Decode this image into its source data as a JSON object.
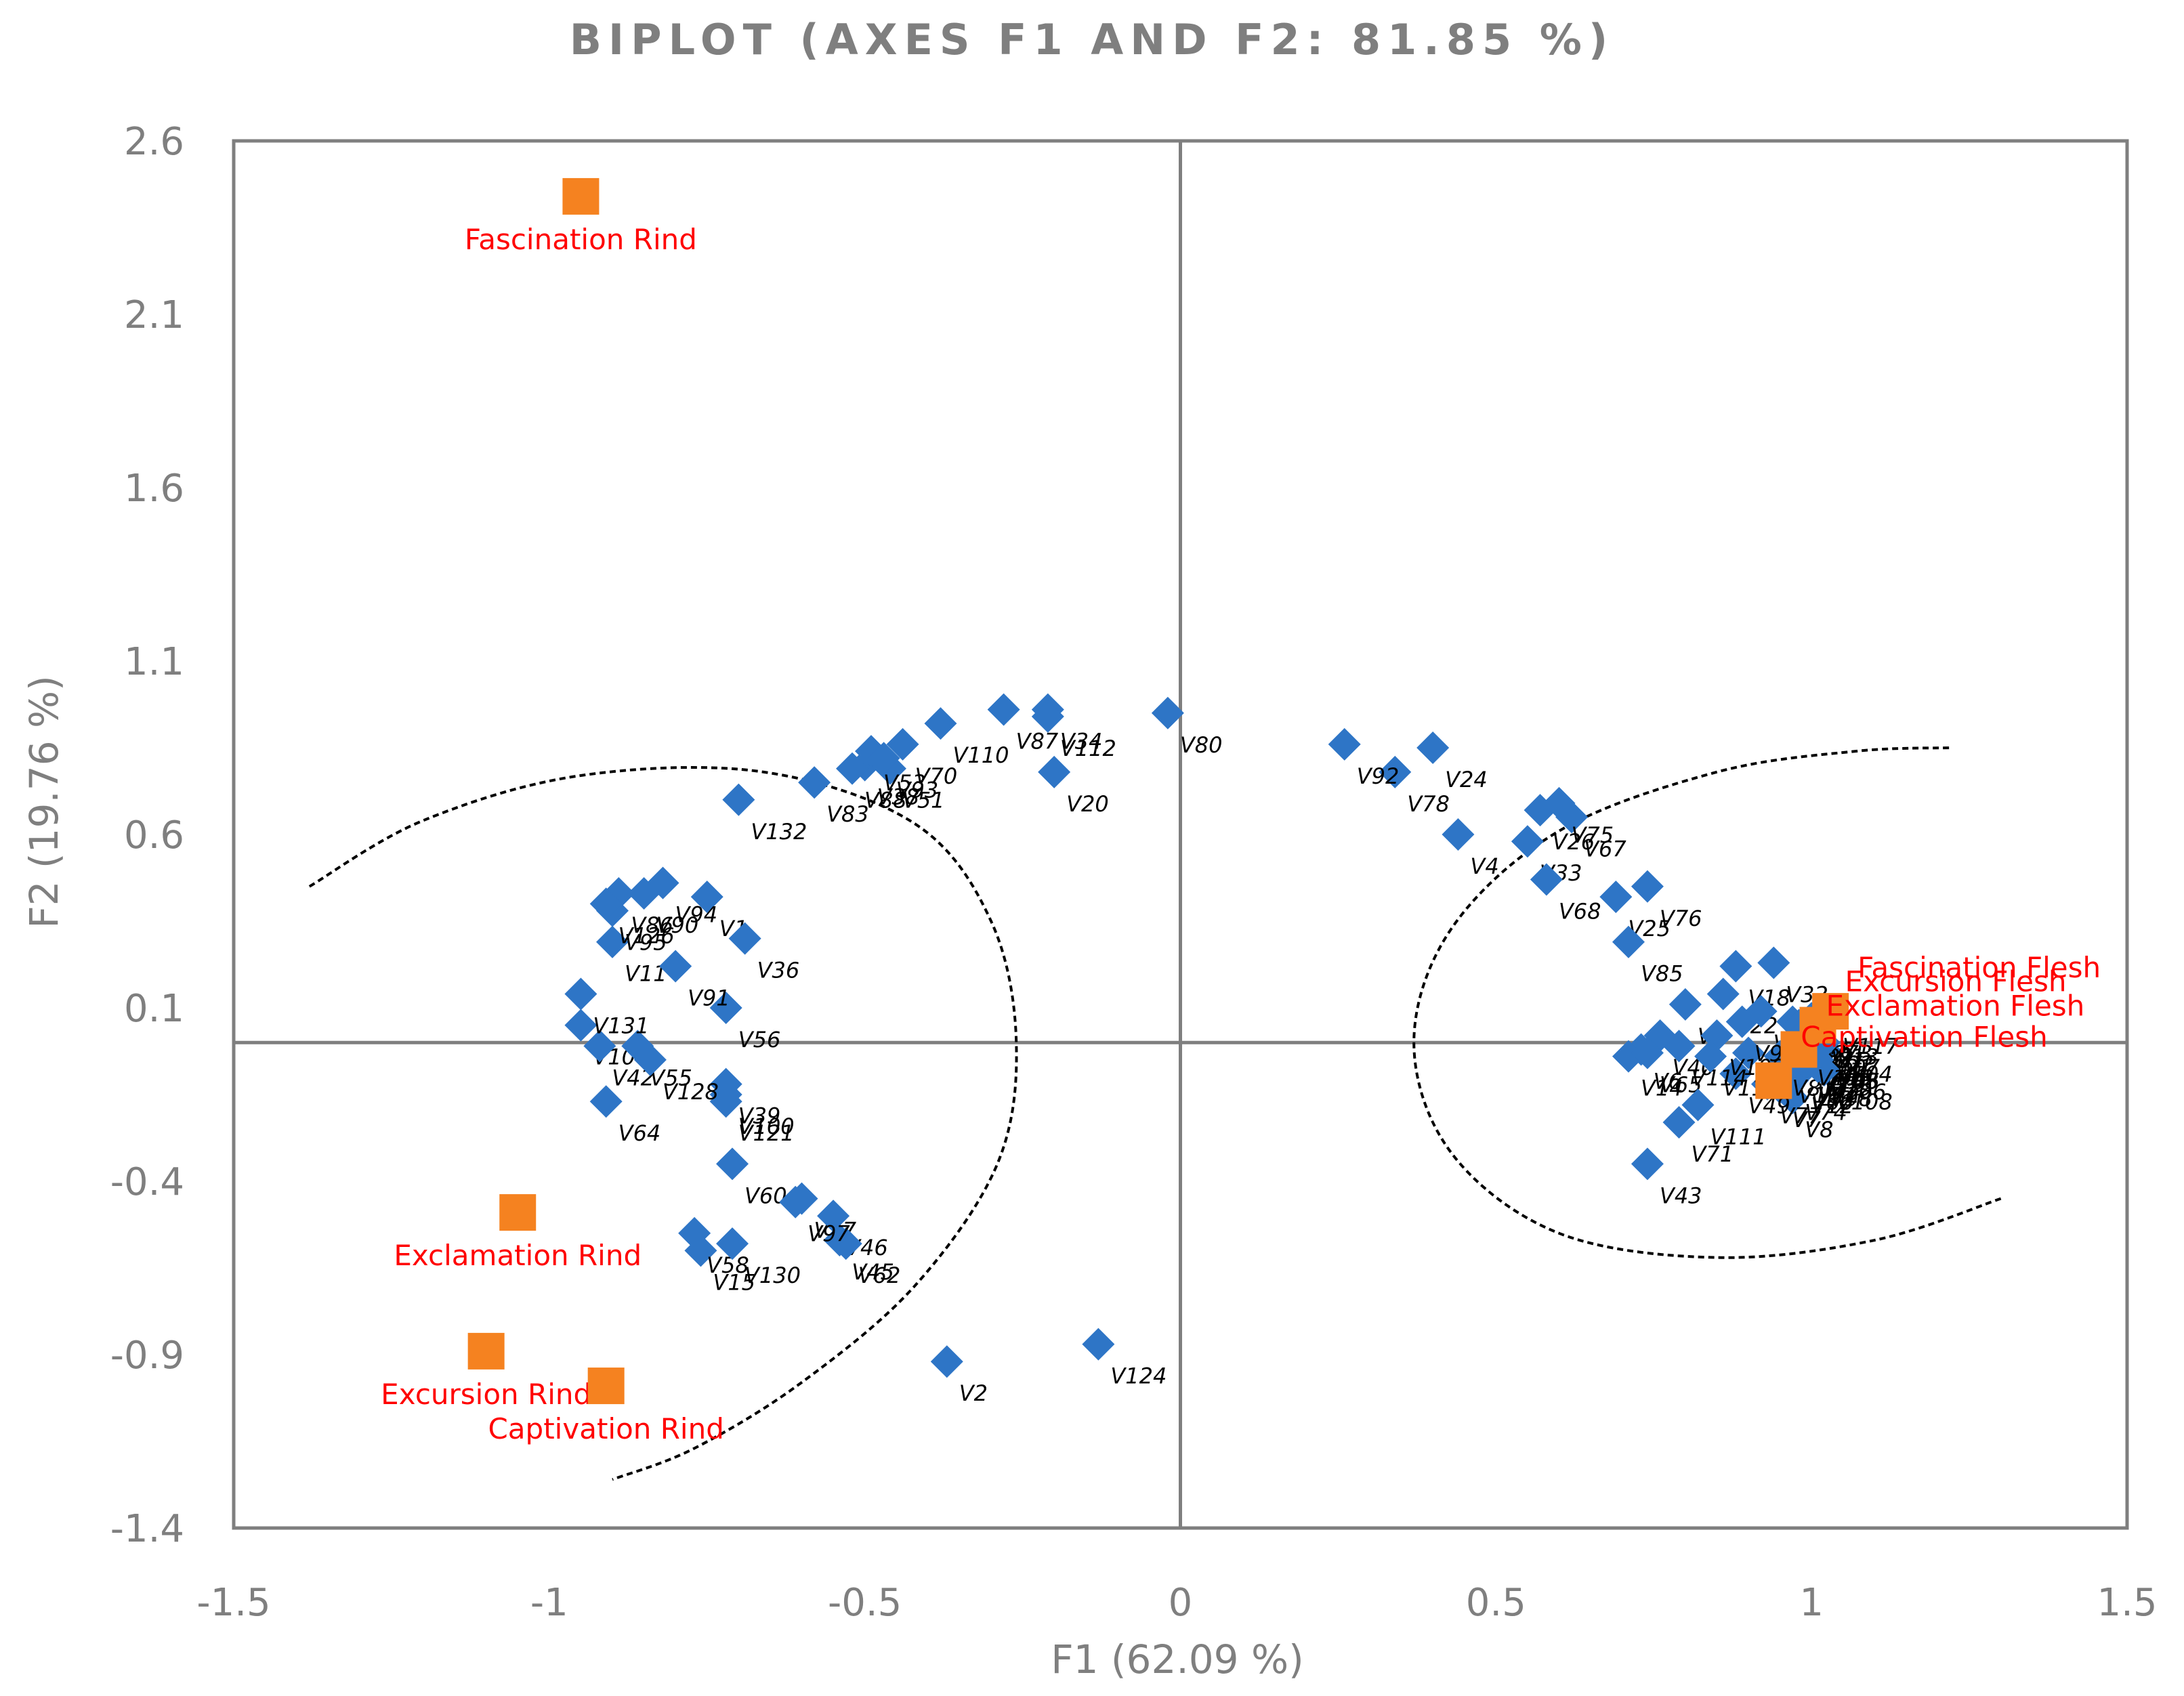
{
  "chart_data": {
    "type": "scatter",
    "title": "BIPLOT (AXES F1 AND F2: 81.85 %)",
    "xlabel": "F1 (62.09 %)",
    "ylabel": "F2 (19.76 %)",
    "xlim": [
      -1.5,
      1.5
    ],
    "ylim": [
      -1.4,
      2.6
    ],
    "x_ticks": [
      "-1.5",
      "-1",
      "-0.5",
      "0",
      "0.5",
      "1",
      "1.5"
    ],
    "y_ticks": [
      "2.6",
      "2.1",
      "1.6",
      "1.1",
      "0.6",
      "0.1",
      "-0.4",
      "-0.9",
      "-1.4"
    ],
    "colors": {
      "variables": "#2e75c6",
      "observations": "#f58220",
      "observation_labels": "#ff0000",
      "frame": "#7f7f7f"
    },
    "series": [
      {
        "name": "Variables",
        "marker": "diamond",
        "points": [
          {
            "label": "V1",
            "x": -0.75,
            "y": 0.42
          },
          {
            "label": "V2",
            "x": -0.37,
            "y": -0.92
          },
          {
            "label": "V4",
            "x": 0.44,
            "y": 0.6
          },
          {
            "label": "V6",
            "x": 0.73,
            "y": -0.02
          },
          {
            "label": "V7",
            "x": 0.95,
            "y": -0.13
          },
          {
            "label": "V8",
            "x": 0.97,
            "y": -0.16
          },
          {
            "label": "V9",
            "x": 0.8,
            "y": 0.11
          },
          {
            "label": "V10",
            "x": -0.95,
            "y": 0.05
          },
          {
            "label": "V11",
            "x": -0.9,
            "y": 0.29
          },
          {
            "label": "V12",
            "x": 0.98,
            "y": -0.09
          },
          {
            "label": "V13",
            "x": 1.02,
            "y": 0.05
          },
          {
            "label": "V14",
            "x": 0.71,
            "y": -0.04
          },
          {
            "label": "V15",
            "x": -0.76,
            "y": -0.6
          },
          {
            "label": "V16",
            "x": 0.96,
            "y": -0.06
          },
          {
            "label": "V17",
            "x": -0.6,
            "y": -0.45
          },
          {
            "label": "V18",
            "x": 0.88,
            "y": 0.22
          },
          {
            "label": "V19",
            "x": 1.0,
            "y": -0.03
          },
          {
            "label": "V20",
            "x": -0.2,
            "y": 0.78
          },
          {
            "label": "V21",
            "x": 1.01,
            "y": 0.02
          },
          {
            "label": "V22",
            "x": 0.86,
            "y": 0.14
          },
          {
            "label": "V24",
            "x": 0.4,
            "y": 0.85
          },
          {
            "label": "V25",
            "x": 0.69,
            "y": 0.42
          },
          {
            "label": "V26",
            "x": 0.57,
            "y": 0.67
          },
          {
            "label": "V30",
            "x": 0.98,
            "y": 0.01
          },
          {
            "label": "V31",
            "x": 1.0,
            "y": 0.04
          },
          {
            "label": "V32",
            "x": 0.94,
            "y": 0.23
          },
          {
            "label": "V33",
            "x": 0.55,
            "y": 0.58
          },
          {
            "label": "V34",
            "x": -0.21,
            "y": 0.96
          },
          {
            "label": "V35",
            "x": 0.9,
            "y": -0.03
          },
          {
            "label": "V36",
            "x": -0.69,
            "y": 0.3
          },
          {
            "label": "V37",
            "x": 0.92,
            "y": 0.09
          },
          {
            "label": "V38",
            "x": -0.5,
            "y": 0.8
          },
          {
            "label": "V39",
            "x": -0.72,
            "y": -0.12
          },
          {
            "label": "V40",
            "x": 0.76,
            "y": 0.02
          },
          {
            "label": "V42",
            "x": -0.92,
            "y": -0.01
          },
          {
            "label": "V43",
            "x": 0.74,
            "y": -0.35
          },
          {
            "label": "V45",
            "x": -0.54,
            "y": -0.57
          },
          {
            "label": "V46",
            "x": -0.55,
            "y": -0.5
          },
          {
            "label": "V47",
            "x": 0.99,
            "y": -0.05
          },
          {
            "label": "V48",
            "x": 1.02,
            "y": -0.02
          },
          {
            "label": "V49",
            "x": 0.88,
            "y": -0.09
          },
          {
            "label": "V51",
            "x": -0.46,
            "y": 0.79
          },
          {
            "label": "V52",
            "x": 0.97,
            "y": 0.06
          },
          {
            "label": "V53",
            "x": -0.49,
            "y": 0.84
          },
          {
            "label": "V54",
            "x": 0.99,
            "y": 0.0
          },
          {
            "label": "V55",
            "x": -0.86,
            "y": -0.01
          },
          {
            "label": "V56",
            "x": -0.72,
            "y": 0.1
          },
          {
            "label": "V58",
            "x": -0.77,
            "y": -0.55
          },
          {
            "label": "V60",
            "x": -0.71,
            "y": -0.35
          },
          {
            "label": "V61",
            "x": 1.0,
            "y": 0.07
          },
          {
            "label": "V62",
            "x": -0.53,
            "y": -0.58
          },
          {
            "label": "V64",
            "x": -0.91,
            "y": -0.17
          },
          {
            "label": "V65",
            "x": 0.74,
            "y": -0.03
          },
          {
            "label": "V66",
            "x": 0.98,
            "y": -0.08
          },
          {
            "label": "V67",
            "x": 0.62,
            "y": 0.65
          },
          {
            "label": "V68",
            "x": 0.58,
            "y": 0.47
          },
          {
            "label": "V70",
            "x": -0.44,
            "y": 0.86
          },
          {
            "label": "V71",
            "x": 0.79,
            "y": -0.23
          },
          {
            "label": "V73",
            "x": 1.01,
            "y": 0.06
          },
          {
            "label": "V74",
            "x": 0.97,
            "y": -0.11
          },
          {
            "label": "V75",
            "x": 0.6,
            "y": 0.69
          },
          {
            "label": "V76",
            "x": 0.74,
            "y": 0.45
          },
          {
            "label": "V77",
            "x": 0.93,
            "y": -0.12
          },
          {
            "label": "V78",
            "x": 0.34,
            "y": 0.78
          },
          {
            "label": "V79",
            "x": 1.01,
            "y": -0.04
          },
          {
            "label": "V80",
            "x": -0.02,
            "y": 0.95
          },
          {
            "label": "V81",
            "x": 0.95,
            "y": -0.04
          },
          {
            "label": "V82",
            "x": 0.99,
            "y": -0.06
          },
          {
            "label": "V83",
            "x": -0.58,
            "y": 0.75
          },
          {
            "label": "V85",
            "x": 0.71,
            "y": 0.29
          },
          {
            "label": "V86",
            "x": -0.89,
            "y": 0.43
          },
          {
            "label": "V87",
            "x": -0.28,
            "y": 0.96
          },
          {
            "label": "V88",
            "x": -0.52,
            "y": 0.79
          },
          {
            "label": "V89",
            "x": 0.98,
            "y": 0.05
          },
          {
            "label": "V90",
            "x": -0.85,
            "y": 0.43
          },
          {
            "label": "V91",
            "x": -0.8,
            "y": 0.22
          },
          {
            "label": "V92",
            "x": 0.26,
            "y": 0.86
          },
          {
            "label": "V93",
            "x": -0.47,
            "y": 0.82
          },
          {
            "label": "V94",
            "x": -0.82,
            "y": 0.46
          },
          {
            "label": "V95",
            "x": -0.9,
            "y": 0.38
          },
          {
            "label": "V96",
            "x": 1.0,
            "y": -0.01
          },
          {
            "label": "V97",
            "x": -0.61,
            "y": -0.46
          },
          {
            "label": "V98",
            "x": 1.01,
            "y": -0.07
          },
          {
            "label": "V99",
            "x": 0.89,
            "y": 0.06
          },
          {
            "label": "V100",
            "x": -0.72,
            "y": -0.15
          },
          {
            "label": "V102",
            "x": 0.99,
            "y": 0.03
          },
          {
            "label": "V104",
            "x": 1.02,
            "y": 0.0
          },
          {
            "label": "V105",
            "x": 1.0,
            "y": -0.02
          },
          {
            "label": "V106",
            "x": 1.01,
            "y": -0.05
          },
          {
            "label": "V107",
            "x": 1.0,
            "y": 0.02
          },
          {
            "label": "V108",
            "x": 1.02,
            "y": -0.08
          },
          {
            "label": "V109",
            "x": 0.85,
            "y": 0.02
          },
          {
            "label": "V110",
            "x": -0.38,
            "y": 0.92
          },
          {
            "label": "V111",
            "x": 0.82,
            "y": -0.18
          },
          {
            "label": "V112",
            "x": -0.21,
            "y": 0.94
          },
          {
            "label": "V114",
            "x": 0.79,
            "y": -0.01
          },
          {
            "label": "V115",
            "x": 0.84,
            "y": -0.04
          },
          {
            "label": "V117",
            "x": 1.03,
            "y": 0.08
          },
          {
            "label": "V118",
            "x": 0.99,
            "y": -0.01
          },
          {
            "label": "V121",
            "x": -0.72,
            "y": -0.17
          },
          {
            "label": "V124",
            "x": -0.13,
            "y": -0.87
          },
          {
            "label": "V126",
            "x": -0.91,
            "y": 0.4
          },
          {
            "label": "V128",
            "x": -0.84,
            "y": -0.05
          },
          {
            "label": "V130",
            "x": -0.71,
            "y": -0.58
          },
          {
            "label": "V131",
            "x": -0.95,
            "y": 0.14
          },
          {
            "label": "V132",
            "x": -0.7,
            "y": 0.7
          }
        ]
      },
      {
        "name": "Observations",
        "marker": "square",
        "points": [
          {
            "label": "Fascination Rind",
            "x": -0.95,
            "y": 2.44
          },
          {
            "label": "Exclamation Rind",
            "x": -1.05,
            "y": -0.49
          },
          {
            "label": "Excursion Rind",
            "x": -1.1,
            "y": -0.89
          },
          {
            "label": "Captivation Rind",
            "x": -0.91,
            "y": -0.99
          },
          {
            "label": "Excursion Flesh",
            "x": 1.01,
            "y": 0.05
          },
          {
            "label": "Fascination Flesh",
            "x": 1.03,
            "y": 0.09
          },
          {
            "label": "Exclamation Flesh",
            "x": 0.98,
            "y": -0.02
          },
          {
            "label": "Captivation Flesh",
            "x": 0.94,
            "y": -0.11
          }
        ]
      }
    ],
    "ellipses": [
      {
        "name": "Rind group",
        "path": [
          [
            -1.38,
            0.45
          ],
          [
            -1.2,
            0.64
          ],
          [
            -0.95,
            0.77
          ],
          [
            -0.66,
            0.78
          ],
          [
            -0.42,
            0.63
          ],
          [
            -0.3,
            0.35
          ],
          [
            -0.26,
            0.0
          ],
          [
            -0.29,
            -0.35
          ],
          [
            -0.42,
            -0.7
          ],
          [
            -0.6,
            -0.98
          ],
          [
            -0.77,
            -1.17
          ],
          [
            -0.9,
            -1.26
          ]
        ]
      },
      {
        "name": "Flesh group",
        "path": [
          [
            1.3,
            -0.45
          ],
          [
            1.1,
            -0.57
          ],
          [
            0.85,
            -0.62
          ],
          [
            0.6,
            -0.55
          ],
          [
            0.43,
            -0.32
          ],
          [
            0.37,
            0.0
          ],
          [
            0.43,
            0.33
          ],
          [
            0.6,
            0.61
          ],
          [
            0.85,
            0.78
          ],
          [
            1.07,
            0.84
          ],
          [
            1.22,
            0.85
          ]
        ]
      }
    ]
  }
}
